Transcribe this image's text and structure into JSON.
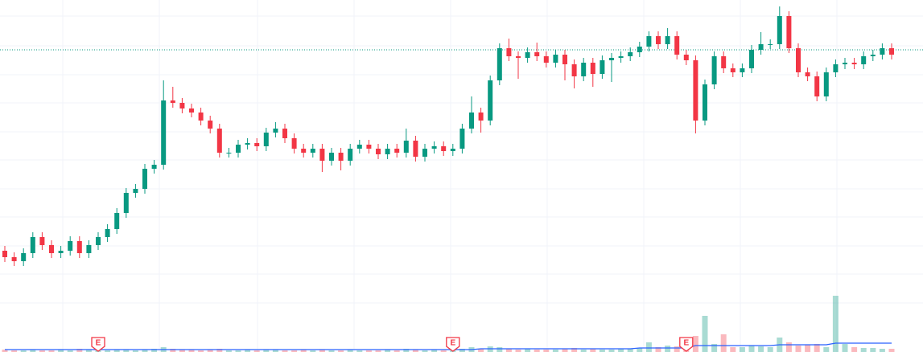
{
  "chart_data": {
    "type": "candlestick",
    "up_color": "#089981",
    "down_color": "#f23645",
    "ma_color": "#2962ff",
    "ylim": [
      0,
      438
    ],
    "volume_ylim": [
      0,
      80
    ],
    "price_line": 376,
    "candles": [
      [
        126,
        132,
        112,
        118
      ],
      [
        118,
        124,
        107,
        113
      ],
      [
        113,
        129,
        107,
        123
      ],
      [
        123,
        149,
        117,
        143
      ],
      [
        143,
        149,
        127,
        133
      ],
      [
        133,
        139,
        117,
        123
      ],
      [
        123,
        132,
        117,
        126
      ],
      [
        126,
        144,
        120,
        138
      ],
      [
        138,
        144,
        117,
        123
      ],
      [
        123,
        139,
        117,
        133
      ],
      [
        133,
        149,
        127,
        143
      ],
      [
        143,
        159,
        137,
        153
      ],
      [
        153,
        179,
        147,
        173
      ],
      [
        173,
        204,
        167,
        198
      ],
      [
        198,
        209,
        192,
        203
      ],
      [
        203,
        234,
        197,
        228
      ],
      [
        228,
        239,
        222,
        233
      ],
      [
        233,
        338,
        227,
        313
      ],
      [
        313,
        330,
        304,
        310
      ],
      [
        310,
        316,
        297,
        303
      ],
      [
        303,
        309,
        292,
        298
      ],
      [
        298,
        304,
        282,
        288
      ],
      [
        288,
        294,
        272,
        278
      ],
      [
        278,
        284,
        242,
        248
      ],
      [
        248,
        254,
        242,
        248
      ],
      [
        248,
        264,
        242,
        258
      ],
      [
        258,
        266,
        252,
        260
      ],
      [
        260,
        266,
        250,
        256
      ],
      [
        256,
        279,
        250,
        273
      ],
      [
        273,
        286,
        267,
        278
      ],
      [
        278,
        284,
        260,
        266
      ],
      [
        266,
        272,
        247,
        253
      ],
      [
        253,
        259,
        242,
        248
      ],
      [
        248,
        259,
        242,
        253
      ],
      [
        253,
        259,
        224,
        238
      ],
      [
        238,
        254,
        232,
        248
      ],
      [
        248,
        254,
        226,
        238
      ],
      [
        238,
        259,
        232,
        253
      ],
      [
        253,
        264,
        247,
        258
      ],
      [
        258,
        264,
        247,
        253
      ],
      [
        253,
        259,
        240,
        246
      ],
      [
        246,
        259,
        240,
        253
      ],
      [
        253,
        259,
        242,
        248
      ],
      [
        248,
        278,
        242,
        263
      ],
      [
        263,
        269,
        237,
        243
      ],
      [
        243,
        259,
        237,
        253
      ],
      [
        253,
        262,
        247,
        256
      ],
      [
        256,
        262,
        244,
        250
      ],
      [
        250,
        259,
        244,
        253
      ],
      [
        253,
        284,
        247,
        278
      ],
      [
        278,
        318,
        272,
        298
      ],
      [
        298,
        304,
        273,
        288
      ],
      [
        288,
        344,
        282,
        338
      ],
      [
        338,
        384,
        332,
        378
      ],
      [
        378,
        390,
        362,
        368
      ],
      [
        368,
        374,
        340,
        366
      ],
      [
        366,
        379,
        360,
        373
      ],
      [
        373,
        385,
        362,
        368
      ],
      [
        368,
        374,
        354,
        360
      ],
      [
        360,
        376,
        354,
        370
      ],
      [
        370,
        376,
        338,
        358
      ],
      [
        358,
        364,
        328,
        343
      ],
      [
        343,
        366,
        337,
        360
      ],
      [
        360,
        366,
        330,
        346
      ],
      [
        346,
        369,
        340,
        363
      ],
      [
        363,
        372,
        336,
        366
      ],
      [
        366,
        374,
        360,
        368
      ],
      [
        368,
        379,
        362,
        373
      ],
      [
        373,
        386,
        367,
        380
      ],
      [
        380,
        399,
        374,
        393
      ],
      [
        393,
        399,
        377,
        383
      ],
      [
        383,
        403,
        377,
        393
      ],
      [
        393,
        399,
        364,
        370
      ],
      [
        370,
        376,
        357,
        363
      ],
      [
        363,
        369,
        272,
        288
      ],
      [
        288,
        339,
        282,
        333
      ],
      [
        333,
        374,
        327,
        368
      ],
      [
        368,
        374,
        347,
        353
      ],
      [
        353,
        359,
        342,
        348
      ],
      [
        348,
        359,
        342,
        353
      ],
      [
        353,
        382,
        347,
        376
      ],
      [
        376,
        398,
        370,
        383
      ],
      [
        383,
        389,
        377,
        383
      ],
      [
        383,
        430,
        377,
        418
      ],
      [
        418,
        424,
        372,
        378
      ],
      [
        378,
        384,
        342,
        348
      ],
      [
        348,
        354,
        337,
        343
      ],
      [
        343,
        349,
        312,
        318
      ],
      [
        318,
        354,
        312,
        348
      ],
      [
        348,
        364,
        342,
        358
      ],
      [
        358,
        366,
        352,
        360
      ],
      [
        360,
        366,
        352,
        358
      ],
      [
        358,
        374,
        352,
        368
      ],
      [
        368,
        376,
        362,
        370
      ],
      [
        370,
        384,
        364,
        378
      ],
      [
        378,
        384,
        364,
        370
      ]
    ],
    "volumes": [
      3,
      2,
      2,
      3,
      2,
      2,
      3,
      2,
      4,
      3,
      3,
      2,
      3,
      3,
      2,
      3,
      4,
      6,
      4,
      3,
      3,
      2,
      3,
      4,
      2,
      2,
      3,
      2,
      3,
      3,
      2,
      2,
      3,
      2,
      3,
      2,
      2,
      3,
      2,
      2,
      2,
      3,
      2,
      4,
      3,
      2,
      3,
      2,
      3,
      4,
      6,
      4,
      7,
      6,
      4,
      3,
      4,
      3,
      3,
      3,
      4,
      5,
      3,
      4,
      3,
      3,
      4,
      4,
      5,
      12,
      6,
      8,
      7,
      5,
      20,
      45,
      10,
      22,
      6,
      6,
      8,
      7,
      6,
      18,
      12,
      8,
      9,
      10,
      6,
      70,
      10,
      6,
      5,
      5,
      4,
      4
    ],
    "volume_ma": [
      3,
      3,
      3,
      3,
      3,
      3,
      3,
      3,
      3,
      3,
      3,
      3,
      3,
      3,
      3,
      3,
      3,
      3,
      3,
      3,
      3,
      3,
      3,
      3,
      3,
      3,
      3,
      3,
      3,
      3,
      3,
      3,
      3,
      3,
      3,
      3,
      3,
      3,
      3,
      3,
      3,
      3,
      3,
      3,
      3,
      3,
      3,
      3,
      3,
      3,
      3,
      4,
      4,
      4,
      4,
      4,
      4,
      4,
      4,
      4,
      4,
      4,
      4,
      4,
      4,
      4,
      4,
      4,
      5,
      5,
      5,
      5,
      5,
      5,
      8,
      8,
      8,
      8,
      8,
      8,
      8,
      8,
      8,
      9,
      9,
      9,
      9,
      9,
      9,
      11,
      11,
      11,
      11,
      11,
      11,
      11
    ],
    "events": [
      {
        "index": 10,
        "label": "E"
      },
      {
        "index": 48,
        "label": "E"
      },
      {
        "index": 73,
        "label": "E"
      }
    ]
  }
}
